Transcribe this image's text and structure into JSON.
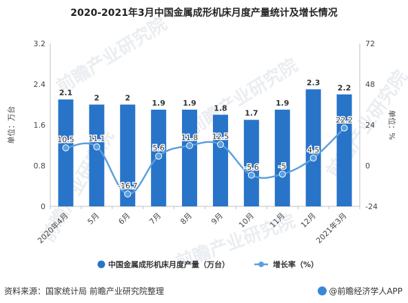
{
  "title": "2020-2021年3月中国金属成形机床月度产量统计及增长情况",
  "source": "资料来源：国家统计局 前瞻产业研究院整理",
  "brand": "@前瞻经济学人APP",
  "watermark": "前瞻产业研究院",
  "colors": {
    "bar": "#2874c9",
    "line": "#5b9fdd",
    "axis": "#bfbfbf",
    "text": "#444444"
  },
  "chart_data": {
    "type": "bar",
    "categories": [
      "2020年4月",
      "5月",
      "6月",
      "7月",
      "8月",
      "9月",
      "10月",
      "11月",
      "12月",
      "2021年3月"
    ],
    "series": [
      {
        "name": "中国金属成形机床月度产量（万台）",
        "type": "bar",
        "axis": "left",
        "values": [
          2.1,
          2.0,
          2.0,
          1.9,
          1.9,
          1.8,
          1.7,
          1.9,
          2.3,
          2.2
        ],
        "labels": [
          "2.1",
          "2",
          "2",
          "1.9",
          "1.9",
          "1.8",
          "1.7",
          "1.9",
          "2.3",
          "2.2"
        ]
      },
      {
        "name": "增长率（%）",
        "type": "line",
        "axis": "right",
        "values": [
          10.5,
          11.1,
          -16.7,
          5.6,
          11.8,
          12.5,
          -5.6,
          -5.0,
          4.5,
          22.2
        ],
        "labels": [
          "10.5",
          "11.1",
          "-16.7",
          "5.6",
          "11.8",
          "12.5",
          "-5.6",
          "-5",
          "4.5",
          "22.2"
        ]
      }
    ],
    "ylabel": "单位：万台",
    "ylabel_right": "单位：%",
    "ylim": [
      0,
      3.2
    ],
    "yticks": [
      "0",
      "0.8",
      "1.6",
      "2.4",
      "3.2"
    ],
    "ylim_right": [
      -24,
      72
    ],
    "yticks_right": [
      "-24",
      "0",
      "24",
      "48",
      "72"
    ],
    "grid": false,
    "legend_position": "bottom"
  }
}
